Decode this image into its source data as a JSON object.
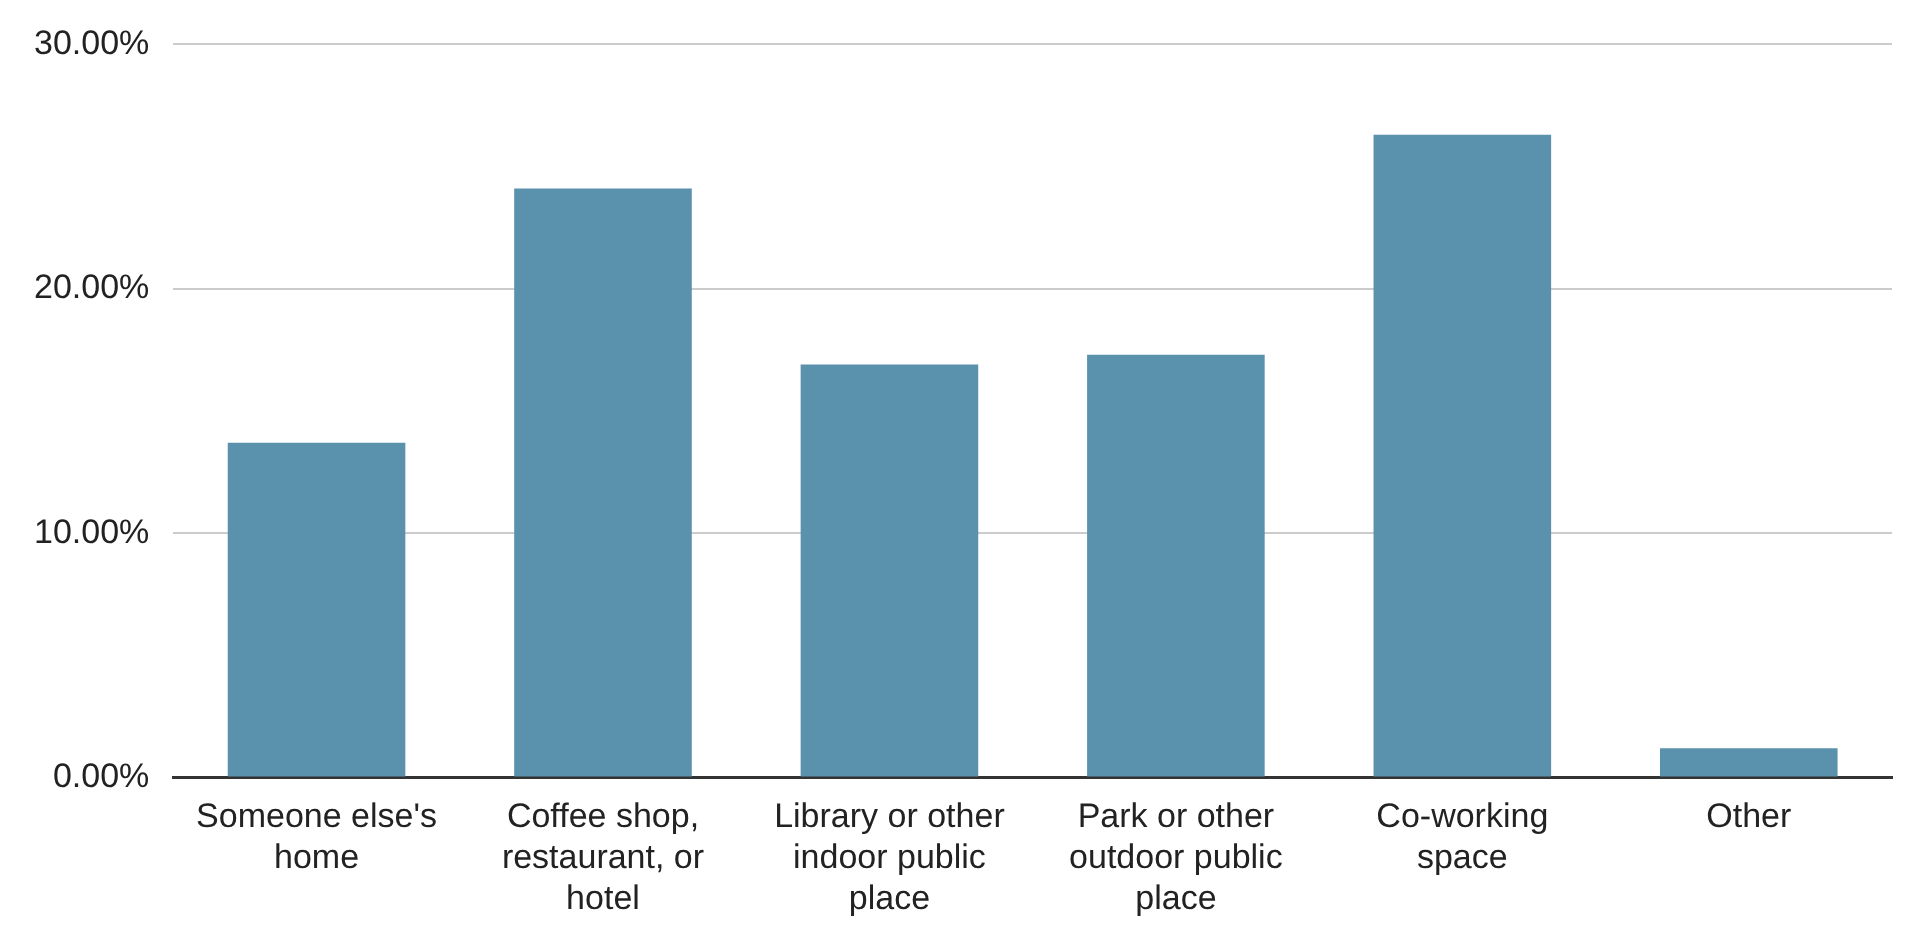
{
  "chart_data": {
    "type": "bar",
    "categories": [
      "Someone else's home",
      "Coffee shop, restaurant, or hotel",
      "Library or other indoor public place",
      "Park or other outdoor public place",
      "Co-working space",
      "Other"
    ],
    "values": [
      13.7,
      24.1,
      16.9,
      17.3,
      26.3,
      1.2
    ],
    "color": "#5a91ad",
    "ylim": [
      0,
      30
    ],
    "yticks": [
      {
        "value": 0,
        "label": "0.00%"
      },
      {
        "value": 10,
        "label": "10.00%"
      },
      {
        "value": 20,
        "label": "20.00%"
      },
      {
        "value": 30,
        "label": "30.00%"
      }
    ],
    "grid": "y",
    "legend": false
  }
}
